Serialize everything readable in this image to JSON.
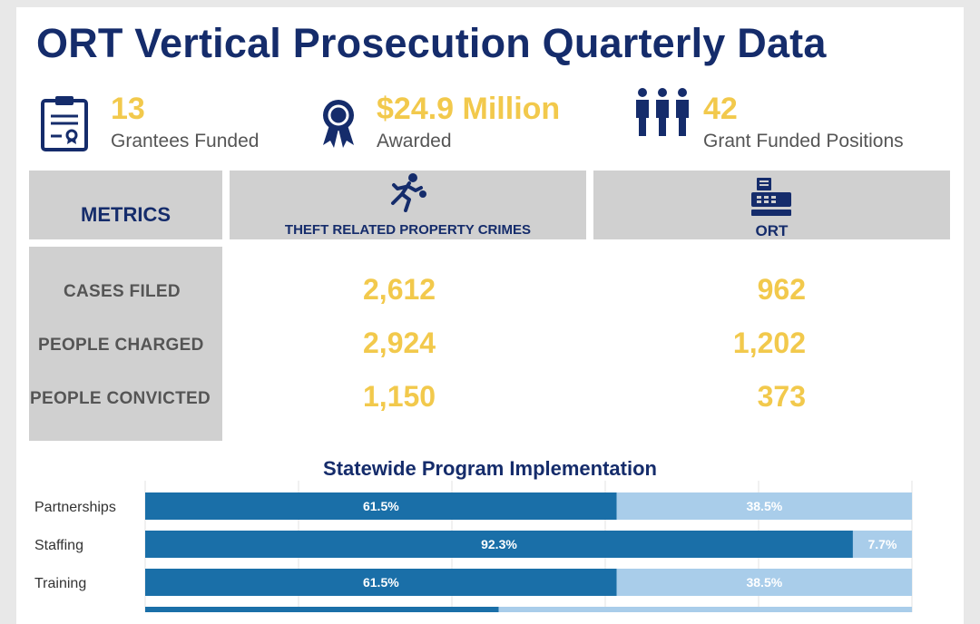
{
  "header": {
    "title": "ORT Vertical Prosecution Quarterly Data"
  },
  "kpis": [
    {
      "value": "13",
      "label": "Grantees Funded",
      "icon": "clipboard-certificate-icon"
    },
    {
      "value": "$24.9 Million",
      "label": "Awarded",
      "icon": "award-ribbon-icon"
    },
    {
      "value": "42",
      "label": "Grant Funded Positions",
      "icon": "people-group-icon"
    }
  ],
  "table": {
    "columns": [
      {
        "label": "METRICS",
        "icon": ""
      },
      {
        "label": "THEFT RELATED PROPERTY CRIMES",
        "icon": "running-thief-icon"
      },
      {
        "label": "ORT",
        "icon": "cash-register-icon"
      }
    ],
    "rows": [
      {
        "metric": "CASES FILED",
        "theft": "2,612",
        "ort": "962"
      },
      {
        "metric": "PEOPLE CHARGED",
        "theft": "2,924",
        "ort": "1,202"
      },
      {
        "metric": "PEOPLE CONVICTED",
        "theft": "1,150",
        "ort": "373"
      }
    ]
  },
  "colors": {
    "navy": "#152c6b",
    "gold": "#f2c94c",
    "bar_dark": "#1a6fa8",
    "bar_light": "#a9cdea",
    "header_gray": "#d0d0d0"
  },
  "chart_data": {
    "type": "bar",
    "orientation": "horizontal",
    "stacked": true,
    "title": "Statewide Program Implementation",
    "categories": [
      "Partnerships",
      "Staffing",
      "Training",
      ""
    ],
    "series": [
      {
        "values": [
          61.5,
          92.3,
          61.5,
          46.1
        ],
        "labels": [
          "61.5%",
          "92.3%",
          "61.5%",
          ""
        ]
      },
      {
        "values": [
          38.5,
          7.7,
          38.5,
          53.9
        ],
        "labels": [
          "38.5%",
          "7.7%",
          "38.5%",
          ""
        ]
      }
    ],
    "xlim": [
      0,
      100
    ],
    "grid": true
  }
}
